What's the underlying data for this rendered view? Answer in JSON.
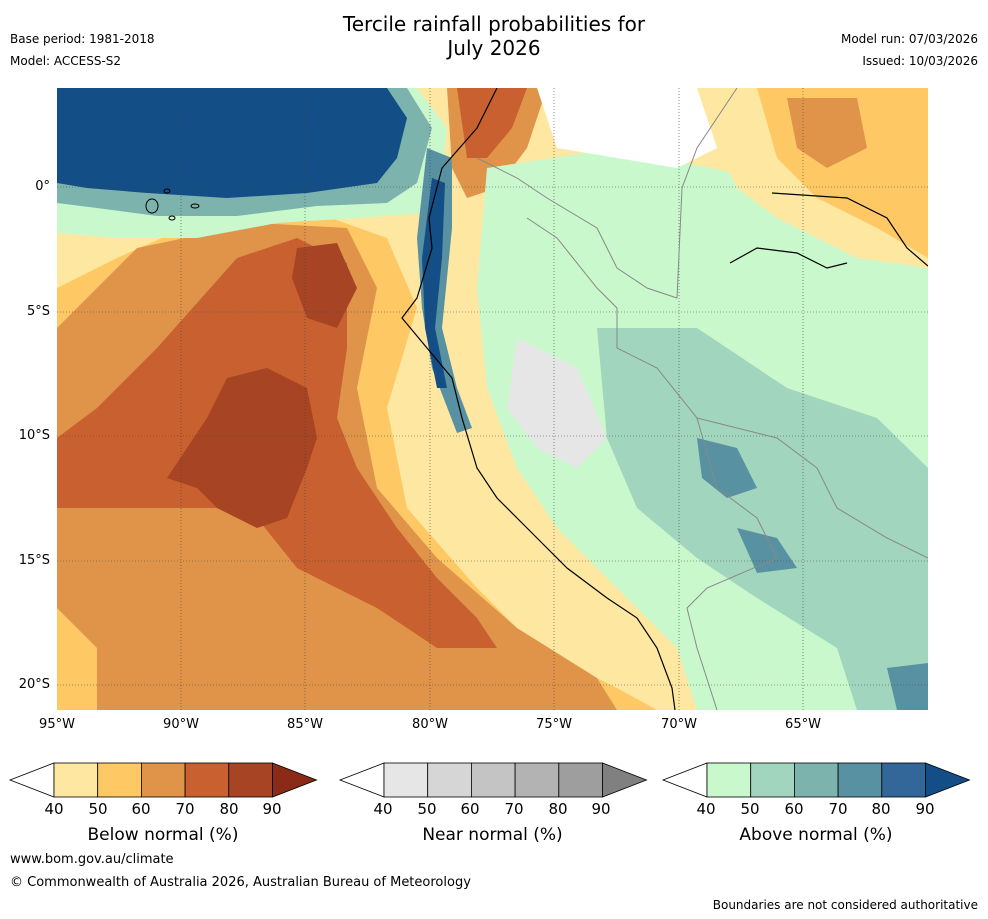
{
  "header": {
    "title_line1": "Tercile rainfall probabilities for",
    "title_line2": "July 2026",
    "base_period": "Base period: 1981-2018",
    "model": "Model: ACCESS-S2",
    "model_run": "Model run: 07/03/2026",
    "issued": "Issued: 10/03/2026"
  },
  "map": {
    "lon_labels": [
      "95°W",
      "90°W",
      "85°W",
      "80°W",
      "75°W",
      "70°W",
      "65°W"
    ],
    "lat_labels": [
      "0°",
      "5°S",
      "10°S",
      "15°S",
      "20°S"
    ]
  },
  "colorbars": [
    {
      "title": "Below normal (%)",
      "ticks": [
        "40",
        "50",
        "60",
        "70",
        "80",
        "90"
      ],
      "colors": [
        "#ffffff",
        "#fee8a1",
        "#fec965",
        "#e0944a",
        "#c8612f",
        "#a74423",
        "#8a2a17"
      ]
    },
    {
      "title": "Near normal (%)",
      "ticks": [
        "40",
        "50",
        "60",
        "70",
        "80",
        "90"
      ],
      "colors": [
        "#ffffff",
        "#e6e6e6",
        "#d6d6d6",
        "#c4c4c4",
        "#b3b3b3",
        "#9e9e9e",
        "#808080"
      ]
    },
    {
      "title": "Above normal (%)",
      "ticks": [
        "40",
        "50",
        "60",
        "70",
        "80",
        "90"
      ],
      "colors": [
        "#ffffff",
        "#c9f8cc",
        "#a1d5bd",
        "#7db3ad",
        "#5891a1",
        "#346799",
        "#144e86"
      ]
    }
  ],
  "footer": {
    "website": "www.bom.gov.au/climate",
    "copyright": "© Commonwealth of Australia 2026, Australian Bureau of Meteorology",
    "disclaimer": "Boundaries are not considered authoritative"
  }
}
